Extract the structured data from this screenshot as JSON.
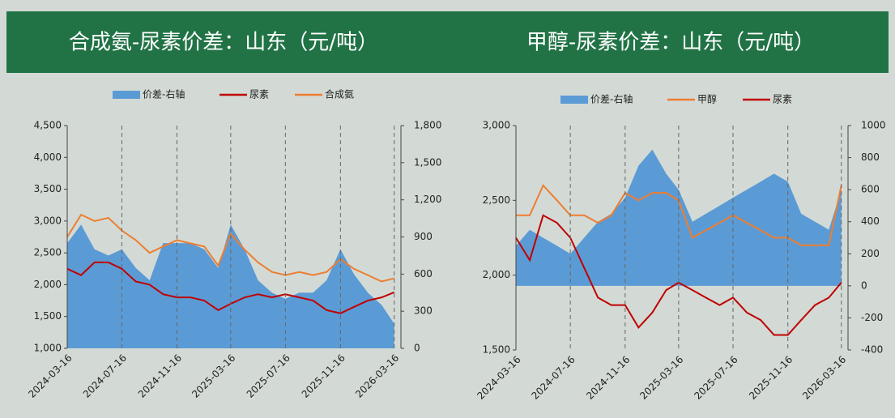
{
  "chart_data": [
    {
      "type": "combo",
      "title": "合成氨-尿素价差：山东（元/吨）",
      "x": [
        "2024-03-16",
        "2024-04-16",
        "2024-05-16",
        "2024-06-16",
        "2024-07-16",
        "2024-08-16",
        "2024-09-16",
        "2024-10-16",
        "2024-11-16",
        "2024-12-16",
        "2025-01-16",
        "2025-02-16",
        "2025-03-16",
        "2025-04-16",
        "2025-05-16",
        "2025-06-16",
        "2025-07-16",
        "2025-08-16",
        "2025-09-16",
        "2025-10-16",
        "2025-11-16",
        "2025-12-16",
        "2026-01-16",
        "2026-02-16",
        "2026-03-16"
      ],
      "series": [
        {
          "name": "价差-右轴",
          "type": "area",
          "axis": "y2",
          "color": "#5b9bd5",
          "values": [
            850,
            1000,
            800,
            750,
            800,
            650,
            550,
            850,
            850,
            850,
            800,
            650,
            1000,
            800,
            550,
            450,
            400,
            450,
            450,
            550,
            800,
            600,
            450,
            350,
            200
          ]
        },
        {
          "name": "尿素",
          "type": "line",
          "color": "#c00000",
          "values": [
            2250,
            2150,
            2350,
            2350,
            2250,
            2050,
            2000,
            1850,
            1800,
            1800,
            1750,
            1600,
            1700,
            1800,
            1850,
            1800,
            1850,
            1800,
            1750,
            1600,
            1550,
            1650,
            1750,
            1800,
            1880
          ]
        },
        {
          "name": "合成氨",
          "type": "line",
          "color": "#ed7d31",
          "values": [
            2750,
            3100,
            3000,
            3050,
            2850,
            2700,
            2500,
            2600,
            2700,
            2650,
            2600,
            2300,
            2800,
            2550,
            2350,
            2200,
            2150,
            2200,
            2150,
            2200,
            2400,
            2250,
            2150,
            2050,
            2100
          ]
        }
      ],
      "xlim": [
        "2024-03-16",
        "2026-03-31"
      ],
      "xticks": [
        "2024-03-16",
        "2024-07-16",
        "2024-11-16",
        "2025-03-16",
        "2025-07-16",
        "2025-11-16",
        "2026-03-16"
      ],
      "ylim": [
        1000,
        4500
      ],
      "yticks": [
        {
          "value": 1000,
          "label": "1,000"
        },
        {
          "value": 1500,
          "label": "1,500"
        },
        {
          "value": 2000,
          "label": "2,000"
        },
        {
          "value": 2500,
          "label": "2,500"
        },
        {
          "value": 3000,
          "label": "3,000"
        },
        {
          "value": 3500,
          "label": "3,500"
        },
        {
          "value": 4000,
          "label": "4,000"
        },
        {
          "value": 4500,
          "label": "4,500"
        }
      ],
      "y2lim": [
        0,
        1800
      ],
      "y2ticks": [
        0,
        300,
        600,
        900,
        {
          "value": 1200,
          "label": "1,200"
        },
        {
          "value": 1500,
          "label": "1,500"
        },
        {
          "value": 1800,
          "label": "1,800"
        }
      ],
      "grid": "x-dashed"
    },
    {
      "type": "combo",
      "title": "甲醇-尿素价差：山东（元/吨）",
      "x": [
        "2024-03-16",
        "2024-04-16",
        "2024-05-16",
        "2024-06-16",
        "2024-07-16",
        "2024-08-16",
        "2024-09-16",
        "2024-10-16",
        "2024-11-16",
        "2024-12-16",
        "2025-01-16",
        "2025-02-16",
        "2025-03-16",
        "2025-04-16",
        "2025-05-16",
        "2025-06-16",
        "2025-07-16",
        "2025-08-16",
        "2025-09-16",
        "2025-10-16",
        "2025-11-16",
        "2025-12-16",
        "2026-01-16",
        "2026-02-16",
        "2026-03-16"
      ],
      "series": [
        {
          "name": "价差-右轴",
          "type": "area",
          "axis": "y2",
          "color": "#5b9bd5",
          "values": [
            250,
            350,
            300,
            250,
            200,
            300,
            400,
            450,
            550,
            750,
            850,
            700,
            600,
            400,
            450,
            500,
            550,
            600,
            650,
            700,
            650,
            450,
            400,
            350,
            600
          ]
        },
        {
          "name": "甲醇",
          "type": "line",
          "color": "#ed7d31",
          "values": [
            2400,
            2400,
            2600,
            2500,
            2400,
            2400,
            2350,
            2400,
            2550,
            2500,
            2550,
            2550,
            2500,
            2250,
            2300,
            2350,
            2400,
            2350,
            2300,
            2250,
            2250,
            2200,
            2200,
            2200,
            2600
          ]
        },
        {
          "name": "尿素",
          "type": "line",
          "color": "#c00000",
          "values": [
            2250,
            2100,
            2400,
            2350,
            2250,
            2050,
            1850,
            1800,
            1800,
            1650,
            1750,
            1900,
            1950,
            1900,
            1850,
            1800,
            1850,
            1750,
            1700,
            1600,
            1600,
            1700,
            1800,
            1850,
            1950
          ]
        }
      ],
      "xlim": [
        "2024-03-16",
        "2026-03-31"
      ],
      "xticks": [
        "2024-03-16",
        "2024-07-16",
        "2024-11-16",
        "2025-03-16",
        "2025-07-16",
        "2025-11-16",
        "2026-03-16"
      ],
      "ylim": [
        1500,
        3000
      ],
      "yticks": [
        {
          "value": 1500,
          "label": "1,500"
        },
        {
          "value": 2000,
          "label": "2,000"
        },
        {
          "value": 2500,
          "label": "2,500"
        },
        {
          "value": 3000,
          "label": "3,000"
        }
      ],
      "y2lim": [
        -400,
        1000
      ],
      "y2ticks": [
        -400,
        -200,
        0,
        200,
        400,
        600,
        800,
        1000
      ],
      "grid": "x-dashed"
    }
  ]
}
